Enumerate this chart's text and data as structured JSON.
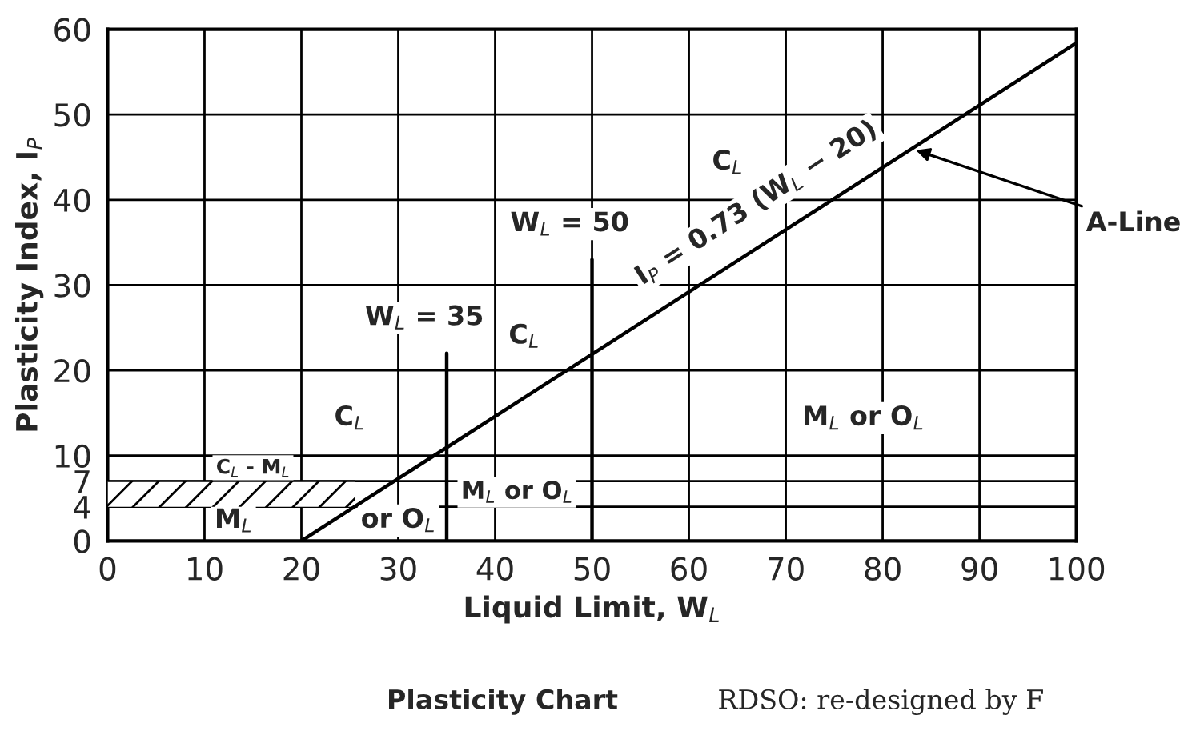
{
  "chart_data": {
    "type": "line",
    "title": "Plasticity Chart",
    "xlabel": "Liquid Limit, W$_{L}$",
    "ylabel": "Plasticity Index, I$_{P}$",
    "xlim": [
      0,
      100
    ],
    "ylim": [
      0,
      60
    ],
    "xticks": [
      0,
      10,
      20,
      30,
      40,
      50,
      60,
      70,
      80,
      90,
      100
    ],
    "yticks": [
      0,
      4,
      7,
      10,
      20,
      30,
      40,
      50,
      60
    ],
    "grid": true,
    "marker": "none",
    "line_style": "solid",
    "series": [
      {
        "color": "#000000",
        "x": [
          20,
          100
        ],
        "values": [
          0,
          58.4
        ]
      },
      {
        "color": "#000000",
        "x": [
          35,
          35
        ],
        "values": [
          0,
          22
        ]
      },
      {
        "color": "#000000",
        "x": [
          50,
          50
        ],
        "values": [
          0,
          33
        ]
      },
      {
        "color": "#000000",
        "x": [
          0,
          25.5
        ],
        "values": [
          7,
          7
        ],
        "lower": [
          4,
          4
        ],
        "upper": [
          7,
          7
        ]
      }
    ],
    "annotations": [
      {
        "text": "A-Line",
        "x": 83,
        "y": 46.0
      },
      {
        "text": "W$_{L}$ = 50",
        "x": 50,
        "y": 33
      },
      {
        "text": "W$_{L}$ = 35",
        "x": 35,
        "y": 22
      },
      "C$_{L}$",
      "I$_{P}$ = 0.73 (W$_{L}$ − 20)",
      "C$_{L}$",
      "C$_{L}$",
      "M$_{L}$ or O$_{L}$",
      "M$_{L}$ or O$_{L}$",
      "C$_{L}$ - M$_{L}$",
      "M$_{L}$",
      "or O$_{L}$",
      "RDSO: re-designed by F"
    ]
  }
}
